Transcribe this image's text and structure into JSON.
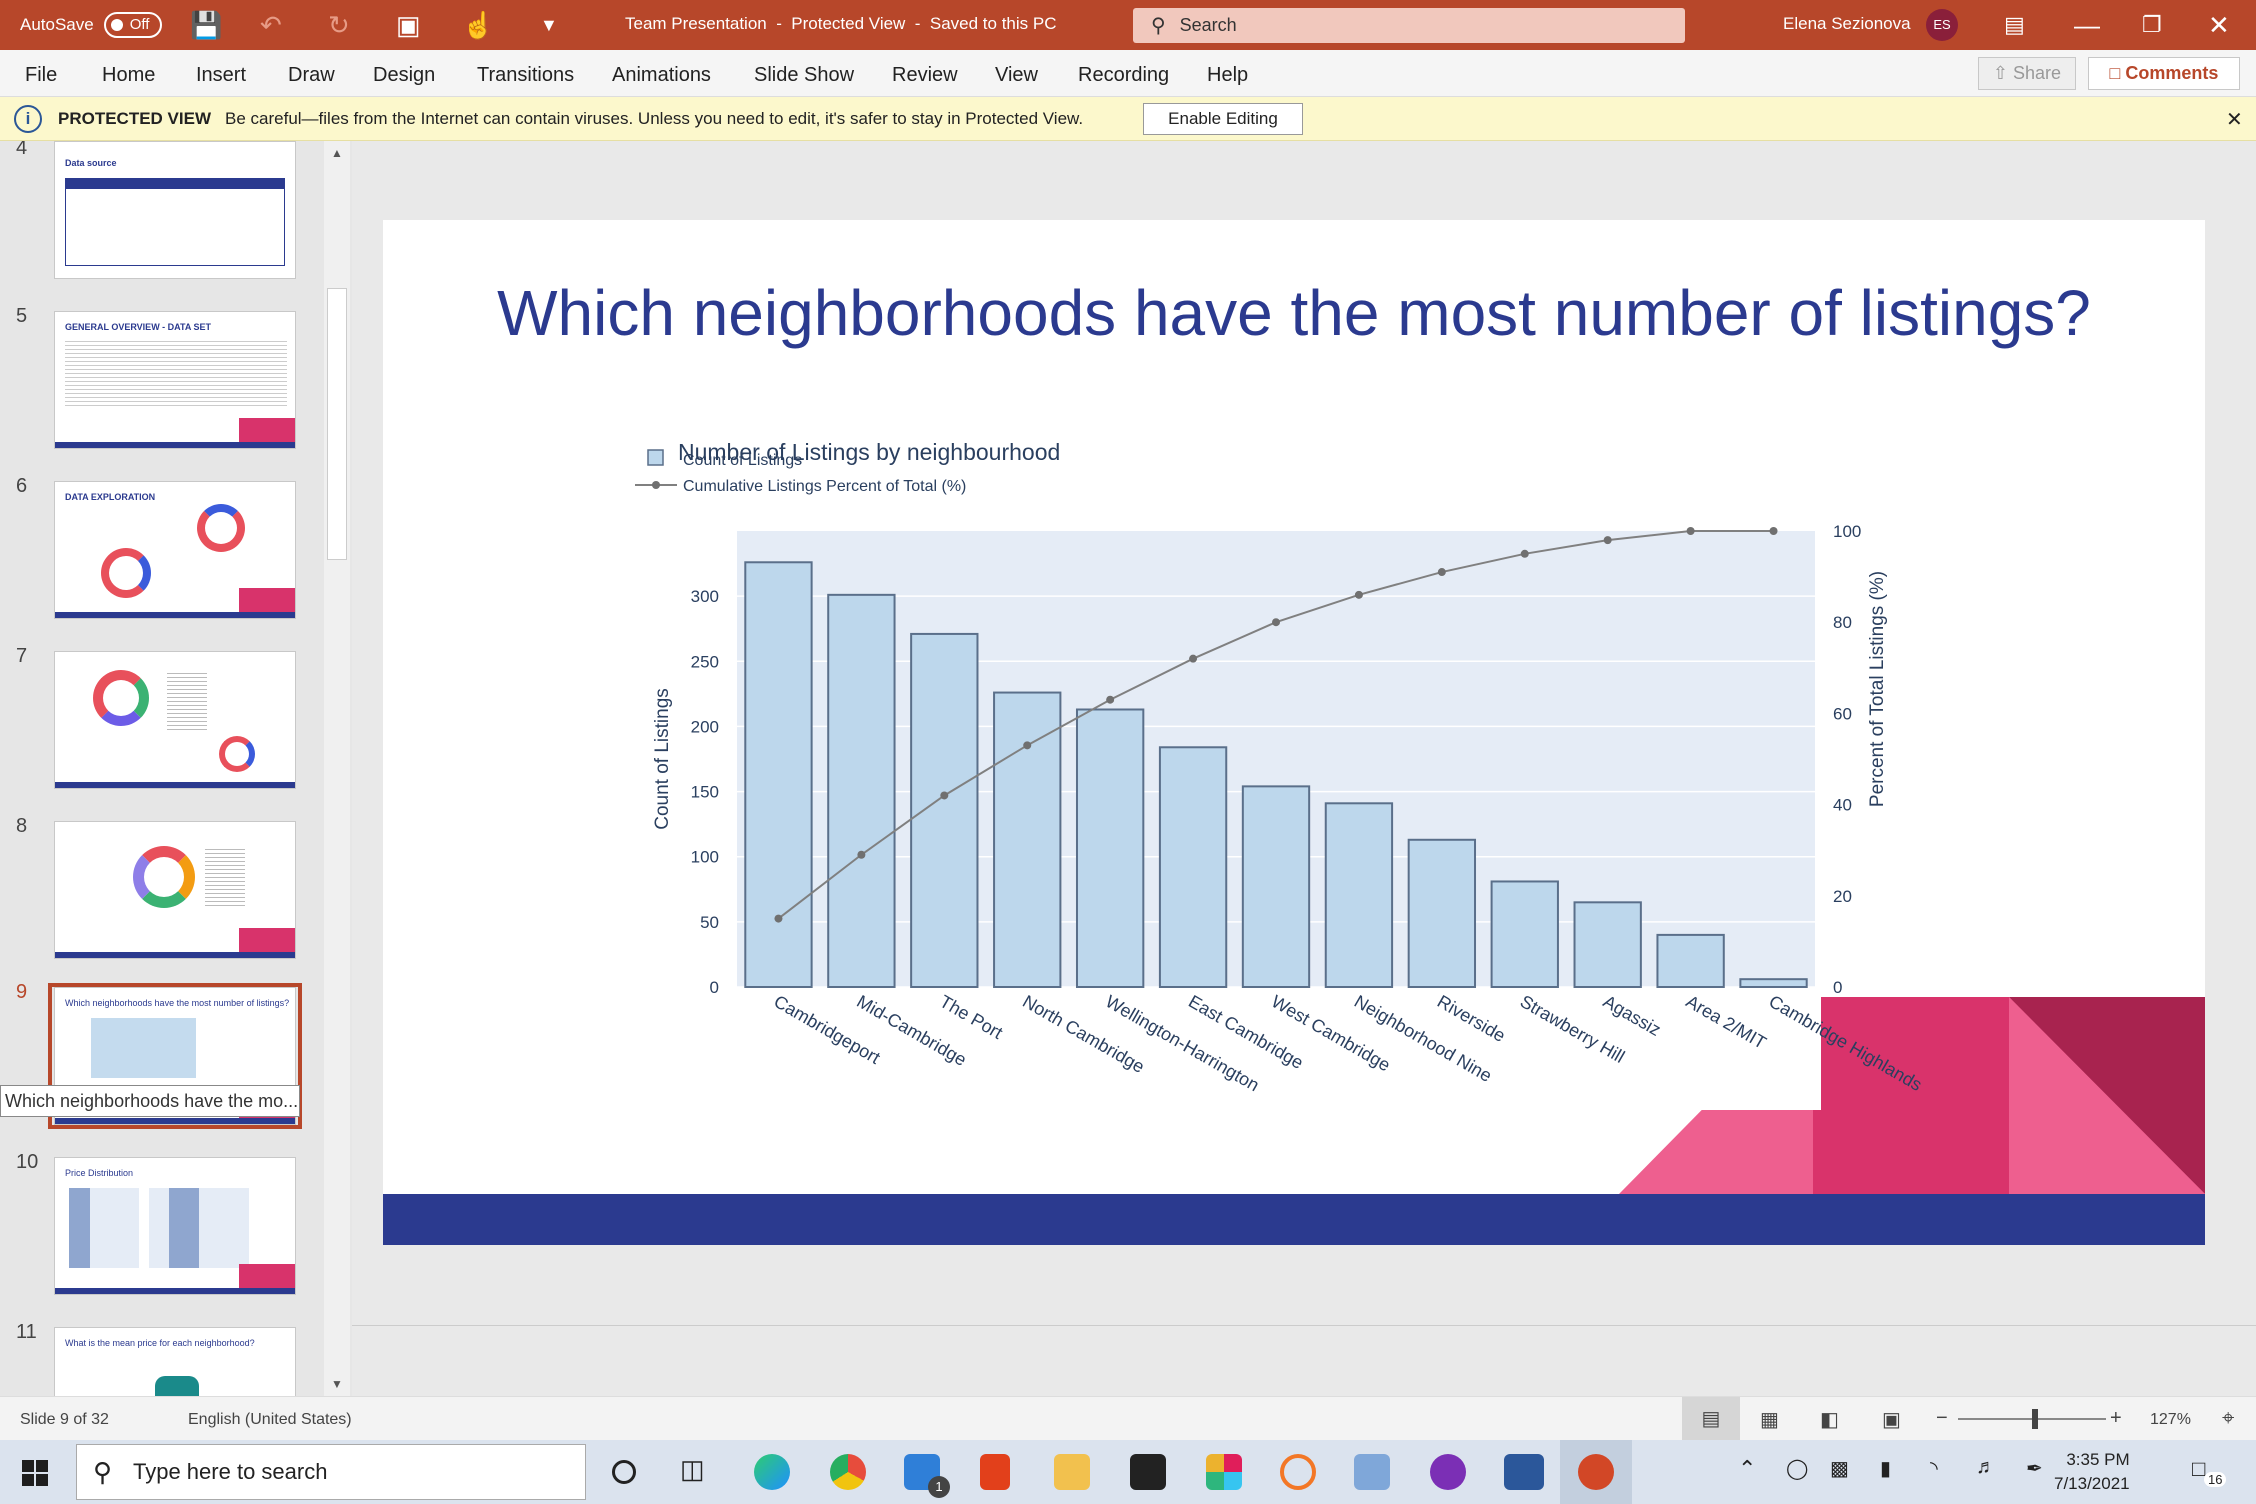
{
  "titlebar": {
    "autosave_label": "AutoSave",
    "autosave_state": "Off",
    "doc_title": "Team Presentation  -  Protected View  -  Saved to this PC",
    "search_placeholder": "Search",
    "user_name": "Elena Sezionova",
    "user_initials": "ES"
  },
  "ribbon": {
    "tabs": [
      "File",
      "Home",
      "Insert",
      "Draw",
      "Design",
      "Transitions",
      "Animations",
      "Slide Show",
      "Review",
      "View",
      "Recording",
      "Help"
    ],
    "share_label": "Share",
    "comments_label": "Comments"
  },
  "protected_view": {
    "label": "PROTECTED VIEW",
    "message": "Be careful—files from the Internet can contain viruses. Unless you need to edit, it's safer to stay in Protected View.",
    "enable_button": "Enable Editing"
  },
  "thumbnails": [
    {
      "num": "4",
      "title": "Data source"
    },
    {
      "num": "5",
      "title": "GENERAL OVERVIEW - DATA SET"
    },
    {
      "num": "6",
      "title": "DATA EXPLORATION"
    },
    {
      "num": "7",
      "title": ""
    },
    {
      "num": "8",
      "title": ""
    },
    {
      "num": "9",
      "title": "Which neighborhoods have the most number of listings?"
    },
    {
      "num": "10",
      "title": "Price Distribution"
    },
    {
      "num": "11",
      "title": "What is the mean price for each neighborhood?"
    }
  ],
  "tooltip": "Which neighborhoods have the mo...",
  "slide": {
    "title": "Which neighborhoods have the most number of listings?"
  },
  "chart_data": {
    "type": "bar",
    "title": "Number of Listings by neighbourhood",
    "categories": [
      "Cambridgeport",
      "Mid-Cambridge",
      "The Port",
      "North Cambridge",
      "Wellington-Harrington",
      "East Cambridge",
      "West Cambridge",
      "Neighborhood Nine",
      "Riverside",
      "Strawberry Hill",
      "Agassiz",
      "Area 2/MIT",
      "Cambridge Highlands"
    ],
    "series": [
      {
        "name": "Count of Listings",
        "type": "bar",
        "axis": "left",
        "values": [
          326,
          301,
          271,
          226,
          213,
          184,
          154,
          141,
          113,
          81,
          65,
          40,
          6
        ]
      },
      {
        "name": "Cumulative Listings Percent of Total (%)",
        "type": "line",
        "axis": "right",
        "values": [
          15,
          29,
          42,
          53,
          63,
          72,
          80,
          86,
          91,
          95,
          98,
          100,
          100
        ]
      }
    ],
    "ylabel": "Count of Listings",
    "y2label": "Percent of Total Listings (%)",
    "ylim": [
      0,
      350
    ],
    "y2lim": [
      0,
      100
    ],
    "yticks": [
      "0",
      "50",
      "100",
      "150",
      "200",
      "250",
      "300"
    ],
    "y2ticks": [
      "0",
      "20",
      "40",
      "60",
      "80",
      "100"
    ],
    "legend_position": "top-left",
    "colors": {
      "bar_fill": "#bdd7ec",
      "bar_stroke": "#5a6f8a",
      "line": "#808080",
      "plot_bg": "#e5ecf6"
    }
  },
  "status": {
    "slide_count": "Slide 9 of 32",
    "language": "English (United States)",
    "zoom": "127%"
  },
  "taskbar": {
    "search_placeholder": "Type here to search",
    "time": "3:35 PM",
    "date": "7/13/2021",
    "mail_badge": "1",
    "notif_badge": "16"
  }
}
